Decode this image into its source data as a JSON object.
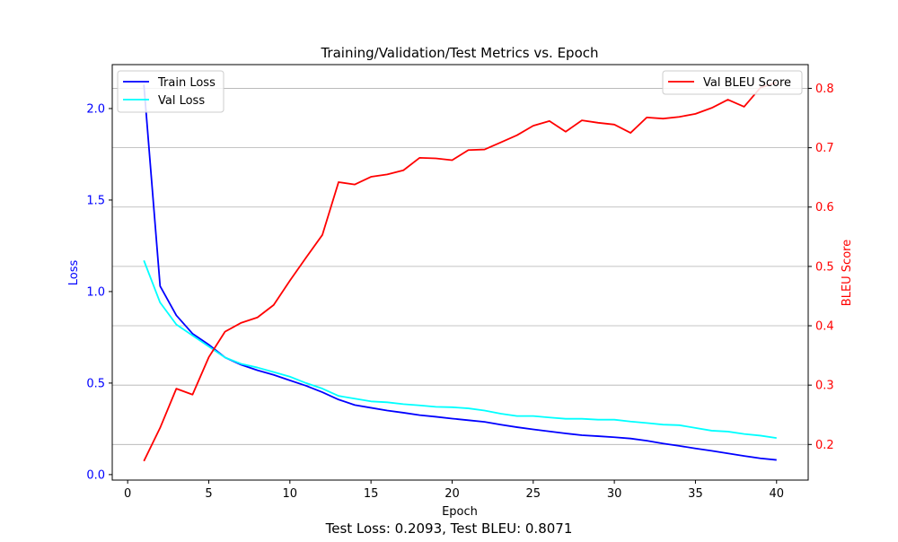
{
  "chart_data": {
    "type": "line",
    "title": "Training/Validation/Test Metrics vs. Epoch",
    "xlabel": "Epoch",
    "ylabel_left": "Loss",
    "ylabel_right": "BLEU Score",
    "footer": "Test Loss: 0.2093, Test BLEU: 0.8071",
    "xlim": [
      -0.95,
      41.95
    ],
    "ylim_left": [
      -0.03,
      2.24
    ],
    "ylim_right": [
      0.14,
      0.84
    ],
    "x_ticks": [
      0,
      5,
      10,
      15,
      20,
      25,
      30,
      35,
      40
    ],
    "y_ticks_left": [
      0.0,
      0.5,
      1.0,
      1.5,
      2.0
    ],
    "y_ticks_left_labels": [
      "0.0",
      "0.5",
      "1.0",
      "1.5",
      "2.0"
    ],
    "y_ticks_right": [
      0.2,
      0.3,
      0.4,
      0.5,
      0.6,
      0.7,
      0.8
    ],
    "y_ticks_right_labels": [
      "0.2",
      "0.3",
      "0.4",
      "0.5",
      "0.6",
      "0.7",
      "0.8"
    ],
    "grid": "horizontal, right axis",
    "x": [
      1,
      2,
      3,
      4,
      5,
      6,
      7,
      8,
      9,
      10,
      11,
      12,
      13,
      14,
      15,
      16,
      17,
      18,
      19,
      20,
      21,
      22,
      23,
      24,
      25,
      26,
      27,
      28,
      29,
      30,
      31,
      32,
      33,
      34,
      35,
      36,
      37,
      38,
      39,
      40
    ],
    "series": [
      {
        "name": "Train Loss",
        "axis": "left",
        "color": "#0000ff",
        "values": [
          2.13,
          1.03,
          0.87,
          0.77,
          0.71,
          0.64,
          0.6,
          0.57,
          0.545,
          0.515,
          0.485,
          0.45,
          0.41,
          0.38,
          0.365,
          0.35,
          0.338,
          0.325,
          0.316,
          0.306,
          0.297,
          0.288,
          0.273,
          0.259,
          0.247,
          0.236,
          0.225,
          0.215,
          0.21,
          0.204,
          0.197,
          0.185,
          0.17,
          0.157,
          0.143,
          0.13,
          0.116,
          0.102,
          0.089,
          0.08
        ]
      },
      {
        "name": "Val Loss",
        "axis": "left",
        "color": "#00ffff",
        "values": [
          1.17,
          0.94,
          0.82,
          0.76,
          0.7,
          0.64,
          0.605,
          0.585,
          0.56,
          0.535,
          0.5,
          0.47,
          0.43,
          0.415,
          0.4,
          0.395,
          0.385,
          0.378,
          0.37,
          0.368,
          0.362,
          0.35,
          0.333,
          0.32,
          0.32,
          0.312,
          0.305,
          0.305,
          0.3,
          0.3,
          0.29,
          0.282,
          0.273,
          0.27,
          0.255,
          0.24,
          0.235,
          0.222,
          0.213,
          0.2
        ]
      },
      {
        "name": "Val BLEU Score",
        "axis": "right",
        "color": "#ff0000",
        "values": [
          0.172,
          0.228,
          0.294,
          0.284,
          0.347,
          0.39,
          0.405,
          0.414,
          0.435,
          0.476,
          0.515,
          0.553,
          0.642,
          0.638,
          0.651,
          0.655,
          0.662,
          0.683,
          0.682,
          0.679,
          0.696,
          0.697,
          0.709,
          0.721,
          0.737,
          0.745,
          0.727,
          0.746,
          0.742,
          0.739,
          0.725,
          0.751,
          0.749,
          0.752,
          0.757,
          0.767,
          0.781,
          0.769,
          0.801,
          0.81
        ]
      }
    ],
    "legends": [
      {
        "placement": "upper-left",
        "entries": [
          "Train Loss",
          "Val Loss"
        ]
      },
      {
        "placement": "upper-right",
        "entries": [
          "Val BLEU Score"
        ]
      }
    ]
  }
}
